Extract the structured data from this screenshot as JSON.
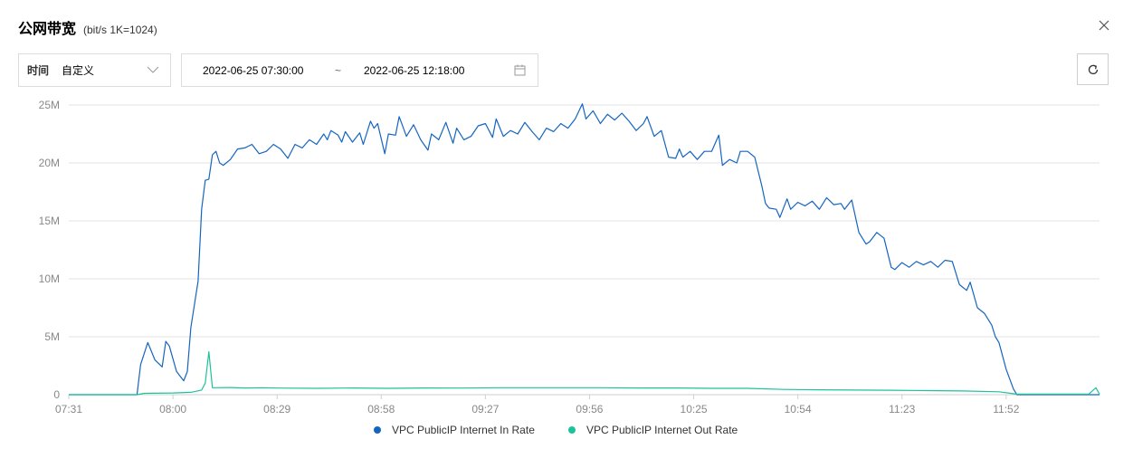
{
  "header": {
    "title": "公网带宽",
    "unit": "(bit/s  1K=1024)"
  },
  "filter": {
    "time_label": "时间",
    "time_value": "自定义",
    "range_start": "2022-06-25 07:30:00",
    "range_sep": "~",
    "range_end": "2022-06-25 12:18:00"
  },
  "icons": {
    "close": "close-icon",
    "dropdown": "chevron-down-icon",
    "calendar": "calendar-icon",
    "refresh": "refresh-icon"
  },
  "colors": {
    "in_rate": "#1565c0",
    "out_rate": "#1ec29a",
    "grid": "#e3e3e3",
    "axis": "#888888"
  },
  "chart_data": {
    "type": "line",
    "title": "",
    "xlabel": "",
    "ylabel": "",
    "x_range_minutes": [
      "07:31",
      "12:18"
    ],
    "y_range": [
      0,
      25000000
    ],
    "y_ticks": [
      {
        "value": 0,
        "label": "0"
      },
      {
        "value": 5000000,
        "label": "5M"
      },
      {
        "value": 10000000,
        "label": "10M"
      },
      {
        "value": 15000000,
        "label": "15M"
      },
      {
        "value": 20000000,
        "label": "20M"
      },
      {
        "value": 25000000,
        "label": "25M"
      }
    ],
    "x_ticks": [
      "07:31",
      "08:00",
      "08:29",
      "08:58",
      "09:27",
      "09:56",
      "10:25",
      "10:54",
      "11:23",
      "11:52"
    ],
    "grid": true,
    "legend_position": "bottom-center",
    "series": [
      {
        "name": "VPC PublicIP Internet In Rate",
        "color": "#1565c0",
        "points": [
          [
            "07:31",
            0
          ],
          [
            "07:50",
            0
          ],
          [
            "07:51",
            2.6
          ],
          [
            "07:53",
            4.5
          ],
          [
            "07:55",
            3.0
          ],
          [
            "07:57",
            2.4
          ],
          [
            "07:58",
            4.6
          ],
          [
            "07:59",
            4.2
          ],
          [
            "08:01",
            2.0
          ],
          [
            "08:02",
            1.6
          ],
          [
            "08:03",
            1.2
          ],
          [
            "08:04",
            2.0
          ],
          [
            "08:05",
            5.8
          ],
          [
            "08:06",
            7.8
          ],
          [
            "08:07",
            9.8
          ],
          [
            "08:08",
            16.0
          ],
          [
            "08:09",
            18.5
          ],
          [
            "08:10",
            18.6
          ],
          [
            "08:11",
            20.7
          ],
          [
            "08:12",
            21.0
          ],
          [
            "08:13",
            20.0
          ],
          [
            "08:14",
            19.8
          ],
          [
            "08:16",
            20.3
          ],
          [
            "08:18",
            21.2
          ],
          [
            "08:20",
            21.3
          ],
          [
            "08:22",
            21.6
          ],
          [
            "08:24",
            20.8
          ],
          [
            "08:26",
            21.0
          ],
          [
            "08:28",
            21.6
          ],
          [
            "08:30",
            21.2
          ],
          [
            "08:32",
            20.4
          ],
          [
            "08:34",
            21.6
          ],
          [
            "08:36",
            21.3
          ],
          [
            "08:38",
            22.0
          ],
          [
            "08:40",
            21.6
          ],
          [
            "08:42",
            22.5
          ],
          [
            "08:43",
            22.0
          ],
          [
            "08:44",
            22.8
          ],
          [
            "08:46",
            22.4
          ],
          [
            "08:47",
            21.8
          ],
          [
            "08:48",
            22.7
          ],
          [
            "08:50",
            21.8
          ],
          [
            "08:52",
            22.6
          ],
          [
            "08:53",
            21.6
          ],
          [
            "08:55",
            23.6
          ],
          [
            "08:56",
            23.0
          ],
          [
            "08:57",
            23.4
          ],
          [
            "08:59",
            20.8
          ],
          [
            "09:00",
            22.5
          ],
          [
            "09:02",
            22.4
          ],
          [
            "09:03",
            24.0
          ],
          [
            "09:05",
            22.3
          ],
          [
            "09:07",
            23.3
          ],
          [
            "09:09",
            22.0
          ],
          [
            "09:11",
            21.1
          ],
          [
            "09:12",
            22.5
          ],
          [
            "09:14",
            22.0
          ],
          [
            "09:16",
            23.5
          ],
          [
            "09:18",
            21.7
          ],
          [
            "09:19",
            23.0
          ],
          [
            "09:21",
            22.0
          ],
          [
            "09:23",
            22.3
          ],
          [
            "09:25",
            23.2
          ],
          [
            "09:27",
            23.4
          ],
          [
            "09:29",
            22.2
          ],
          [
            "09:30",
            23.8
          ],
          [
            "09:32",
            22.3
          ],
          [
            "09:34",
            22.8
          ],
          [
            "09:36",
            22.5
          ],
          [
            "09:38",
            23.5
          ],
          [
            "09:40",
            22.7
          ],
          [
            "09:42",
            22.0
          ],
          [
            "09:44",
            23.0
          ],
          [
            "09:46",
            22.7
          ],
          [
            "09:48",
            23.4
          ],
          [
            "09:50",
            23.0
          ],
          [
            "09:52",
            23.8
          ],
          [
            "09:54",
            25.1
          ],
          [
            "09:55",
            23.8
          ],
          [
            "09:57",
            24.5
          ],
          [
            "09:59",
            23.4
          ],
          [
            "10:01",
            24.2
          ],
          [
            "10:03",
            23.7
          ],
          [
            "10:05",
            24.3
          ],
          [
            "10:07",
            23.6
          ],
          [
            "10:09",
            22.8
          ],
          [
            "10:11",
            23.4
          ],
          [
            "10:12",
            24.0
          ],
          [
            "10:14",
            22.3
          ],
          [
            "10:16",
            22.8
          ],
          [
            "10:18",
            20.5
          ],
          [
            "10:20",
            20.4
          ],
          [
            "10:21",
            21.2
          ],
          [
            "10:22",
            20.5
          ],
          [
            "10:24",
            21.0
          ],
          [
            "10:26",
            20.3
          ],
          [
            "10:28",
            21.0
          ],
          [
            "10:30",
            21.0
          ],
          [
            "10:32",
            22.4
          ],
          [
            "10:33",
            19.8
          ],
          [
            "10:35",
            20.3
          ],
          [
            "10:37",
            20.0
          ],
          [
            "10:38",
            21.0
          ],
          [
            "10:40",
            21.0
          ],
          [
            "10:42",
            20.5
          ],
          [
            "10:44",
            18.0
          ],
          [
            "10:45",
            16.5
          ],
          [
            "10:46",
            16.1
          ],
          [
            "10:48",
            16.0
          ],
          [
            "10:49",
            15.3
          ],
          [
            "10:51",
            16.9
          ],
          [
            "10:52",
            16.0
          ],
          [
            "10:54",
            16.6
          ],
          [
            "10:56",
            16.3
          ],
          [
            "10:58",
            16.7
          ],
          [
            "11:00",
            16.0
          ],
          [
            "11:02",
            17.0
          ],
          [
            "11:04",
            16.4
          ],
          [
            "11:06",
            16.5
          ],
          [
            "11:07",
            16.0
          ],
          [
            "11:09",
            16.8
          ],
          [
            "11:11",
            14.0
          ],
          [
            "11:13",
            13.0
          ],
          [
            "11:14",
            13.2
          ],
          [
            "11:16",
            14.0
          ],
          [
            "11:18",
            13.5
          ],
          [
            "11:20",
            11.0
          ],
          [
            "11:21",
            10.8
          ],
          [
            "11:23",
            11.4
          ],
          [
            "11:25",
            11.0
          ],
          [
            "11:27",
            11.5
          ],
          [
            "11:29",
            11.2
          ],
          [
            "11:31",
            11.5
          ],
          [
            "11:33",
            11.0
          ],
          [
            "11:35",
            11.6
          ],
          [
            "11:37",
            11.5
          ],
          [
            "11:39",
            9.5
          ],
          [
            "11:41",
            9.0
          ],
          [
            "11:42",
            9.7
          ],
          [
            "11:44",
            7.5
          ],
          [
            "11:46",
            7.0
          ],
          [
            "11:48",
            6.0
          ],
          [
            "11:49",
            5.0
          ],
          [
            "11:50",
            4.5
          ],
          [
            "11:52",
            2.2
          ],
          [
            "11:54",
            0.5
          ],
          [
            "11:55",
            0
          ],
          [
            "12:18",
            0
          ]
        ]
      },
      {
        "name": "VPC PublicIP Internet Out Rate",
        "color": "#1ec29a",
        "points": [
          [
            "07:31",
            0
          ],
          [
            "07:50",
            0
          ],
          [
            "07:52",
            0.12
          ],
          [
            "08:00",
            0.15
          ],
          [
            "08:05",
            0.2
          ],
          [
            "08:08",
            0.4
          ],
          [
            "08:09",
            1.0
          ],
          [
            "08:10",
            3.7
          ],
          [
            "08:11",
            0.6
          ],
          [
            "08:16",
            0.62
          ],
          [
            "08:20",
            0.58
          ],
          [
            "08:25",
            0.6
          ],
          [
            "08:30",
            0.57
          ],
          [
            "08:40",
            0.55
          ],
          [
            "08:50",
            0.58
          ],
          [
            "09:00",
            0.55
          ],
          [
            "09:10",
            0.58
          ],
          [
            "09:20",
            0.57
          ],
          [
            "09:30",
            0.6
          ],
          [
            "09:40",
            0.6
          ],
          [
            "09:50",
            0.6
          ],
          [
            "10:00",
            0.6
          ],
          [
            "10:10",
            0.58
          ],
          [
            "10:20",
            0.58
          ],
          [
            "10:30",
            0.55
          ],
          [
            "10:40",
            0.55
          ],
          [
            "10:50",
            0.45
          ],
          [
            "11:00",
            0.42
          ],
          [
            "11:10",
            0.4
          ],
          [
            "11:20",
            0.38
          ],
          [
            "11:30",
            0.35
          ],
          [
            "11:40",
            0.32
          ],
          [
            "11:50",
            0.25
          ],
          [
            "11:55",
            0.05
          ],
          [
            "12:15",
            0.05
          ],
          [
            "12:17",
            0.6
          ],
          [
            "12:18",
            0.05
          ]
        ]
      }
    ]
  }
}
